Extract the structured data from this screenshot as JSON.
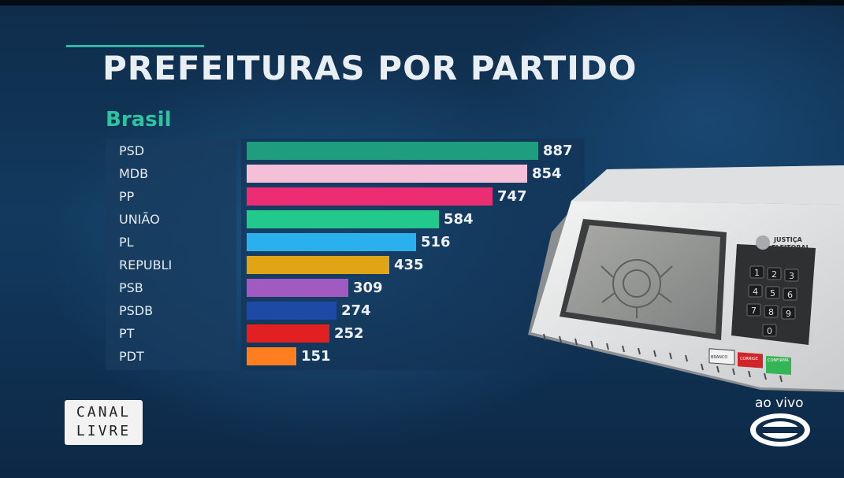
{
  "title": "PREFEITURAS POR PARTIDO",
  "region": "Brasil",
  "chart_data": {
    "type": "bar",
    "orientation": "horizontal",
    "title": "PREFEITURAS POR PARTIDO",
    "subtitle": "Brasil",
    "categories": [
      "PSD",
      "MDB",
      "PP",
      "UNIÃO",
      "PL",
      "REPUBLI",
      "PSB",
      "PSDB",
      "PT",
      "PDT"
    ],
    "values": [
      887,
      854,
      747,
      584,
      516,
      435,
      309,
      274,
      252,
      151
    ],
    "colors": [
      "#1f9e7f",
      "#f6bfd8",
      "#ec2d73",
      "#22c88c",
      "#2ab0ec",
      "#e1a415",
      "#a05ac2",
      "#1c4aa6",
      "#e22022",
      "#ff7e1f"
    ],
    "xlim": [
      0,
      887
    ],
    "grid": false,
    "legend": "none"
  },
  "machine": {
    "brand_line1": "JUSTIÇA",
    "brand_line2": "ELEITORAL",
    "keys": [
      "1",
      "2",
      "3",
      "4",
      "5",
      "6",
      "7",
      "8",
      "9",
      "0"
    ],
    "btn_white": "BRANCO",
    "btn_red": "CORRIGE",
    "btn_green": "CONFIRMA"
  },
  "logos": {
    "canal_line1": "CANAL",
    "canal_line2": "LIVRE",
    "live_text": "ao vivo"
  }
}
